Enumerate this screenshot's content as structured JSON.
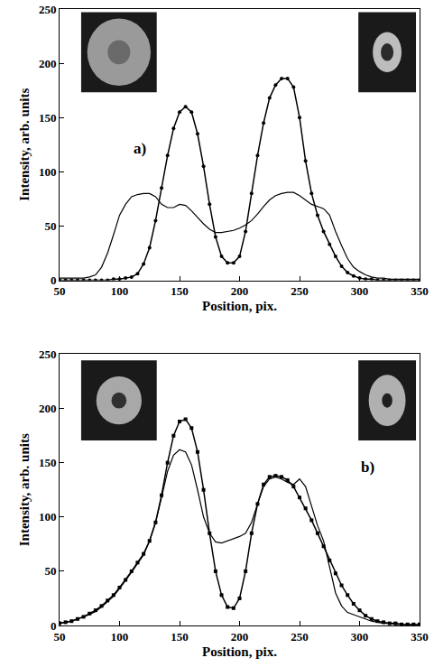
{
  "chart_data": [
    {
      "type": "line",
      "annotations": [
        "a)"
      ],
      "x_label": "Position, pix.",
      "y_label": "Intensity, arb. units",
      "xlim": [
        50,
        350
      ],
      "xticks": [
        50,
        100,
        150,
        200,
        250,
        300,
        350
      ],
      "ylim": [
        0,
        250
      ],
      "yticks": [
        0,
        50,
        100,
        150,
        200,
        250
      ],
      "grid": false,
      "x": [
        50,
        55,
        60,
        65,
        70,
        75,
        80,
        85,
        90,
        95,
        100,
        105,
        110,
        115,
        120,
        125,
        130,
        135,
        140,
        145,
        150,
        155,
        160,
        165,
        170,
        175,
        180,
        185,
        190,
        195,
        200,
        205,
        210,
        215,
        220,
        225,
        230,
        235,
        240,
        245,
        250,
        255,
        260,
        265,
        270,
        275,
        280,
        285,
        290,
        295,
        300,
        305,
        310,
        315,
        320,
        325,
        330,
        335,
        340,
        345,
        350
      ],
      "series": [
        {
          "color": "#000000",
          "marker": "none",
          "line_style": "solid",
          "values": [
            2,
            2,
            2,
            2,
            2,
            3,
            5,
            12,
            25,
            42,
            60,
            70,
            77,
            79,
            80,
            80,
            77,
            70,
            67,
            67,
            70,
            69,
            64,
            58,
            52,
            47,
            44,
            44,
            45,
            46,
            48,
            51,
            55,
            61,
            68,
            74,
            78,
            80,
            81,
            81,
            78,
            74,
            70,
            68,
            66,
            60,
            45,
            32,
            20,
            12,
            8,
            5,
            3,
            2,
            2,
            1,
            1,
            1,
            1,
            1,
            1
          ]
        },
        {
          "color": "#000000",
          "marker": "circle",
          "line_style": "solid",
          "values": [
            0,
            0,
            0,
            0,
            0,
            0,
            0,
            0,
            0,
            1,
            1,
            2,
            3,
            6,
            15,
            30,
            55,
            85,
            115,
            140,
            155,
            160,
            155,
            135,
            105,
            70,
            40,
            22,
            16,
            16,
            22,
            45,
            80,
            115,
            145,
            168,
            180,
            186,
            186,
            178,
            150,
            110,
            80,
            60,
            45,
            33,
            22,
            13,
            7,
            4,
            2,
            1,
            1,
            0,
            0,
            0,
            0,
            0,
            0,
            0,
            0
          ]
        }
      ]
    },
    {
      "type": "line",
      "annotations": [
        "b)"
      ],
      "x_label": "Position, pix.",
      "y_label": "Intensity, arb. units",
      "xlim": [
        50,
        350
      ],
      "xticks": [
        50,
        100,
        150,
        200,
        250,
        300,
        350
      ],
      "ylim": [
        0,
        250
      ],
      "yticks": [
        0,
        50,
        100,
        150,
        200,
        250
      ],
      "grid": false,
      "x": [
        50,
        55,
        60,
        65,
        70,
        75,
        80,
        85,
        90,
        95,
        100,
        105,
        110,
        115,
        120,
        125,
        130,
        135,
        140,
        145,
        150,
        155,
        160,
        165,
        170,
        175,
        180,
        185,
        190,
        195,
        200,
        205,
        210,
        215,
        220,
        225,
        230,
        235,
        240,
        245,
        250,
        255,
        260,
        265,
        270,
        275,
        280,
        285,
        290,
        295,
        300,
        305,
        310,
        315,
        320,
        325,
        330,
        335,
        340,
        345,
        350
      ],
      "series": [
        {
          "color": "#000000",
          "marker": "none",
          "line_style": "solid",
          "values": [
            2,
            3,
            4,
            6,
            8,
            10,
            13,
            17,
            22,
            27,
            34,
            41,
            49,
            57,
            65,
            78,
            95,
            118,
            142,
            157,
            162,
            160,
            148,
            125,
            100,
            85,
            77,
            76,
            78,
            80,
            82,
            85,
            95,
            112,
            128,
            135,
            137,
            135,
            132,
            130,
            135,
            128,
            110,
            92,
            78,
            55,
            30,
            18,
            12,
            10,
            8,
            6,
            4,
            3,
            2,
            2,
            1,
            1,
            1,
            1,
            1
          ]
        },
        {
          "color": "#000000",
          "marker": "square",
          "line_style": "solid",
          "values": [
            2,
            3,
            4,
            6,
            8,
            11,
            14,
            18,
            23,
            28,
            35,
            42,
            50,
            58,
            66,
            78,
            95,
            120,
            150,
            175,
            188,
            190,
            182,
            160,
            125,
            85,
            50,
            28,
            17,
            16,
            25,
            50,
            85,
            112,
            130,
            137,
            138,
            137,
            134,
            128,
            118,
            108,
            97,
            85,
            73,
            60,
            48,
            37,
            28,
            20,
            14,
            9,
            6,
            4,
            3,
            2,
            2,
            1,
            1,
            1,
            1
          ]
        }
      ]
    }
  ]
}
